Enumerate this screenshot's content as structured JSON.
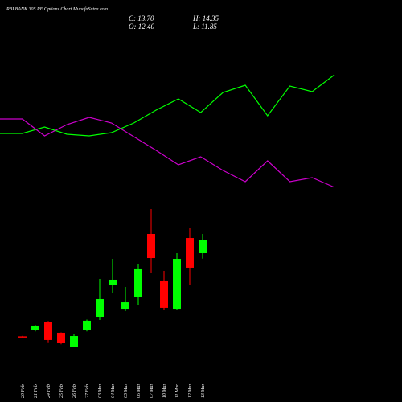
{
  "chart_data": [
    {
      "type": "candlestick",
      "title": "RBLBANK 305 PE Options Chart MunafaSutra.com",
      "header": [
        "C: 13.70",
        "H: 14.35",
        "O: 12.40",
        "L: 11.85"
      ],
      "categories": [
        "20 Feb",
        "21 Feb",
        "24 Feb",
        "25 Feb",
        "26 Feb",
        "27 Feb",
        "03 Mar",
        "04 Mar",
        "05 Mar",
        "06 Mar",
        "07 Mar",
        "10 Mar",
        "11 Mar",
        "12 Mar",
        "13 Mar"
      ],
      "open": [
        4.0,
        4.6,
        5.49,
        4.36,
        2.97,
        4.6,
        5.98,
        9.15,
        6.79,
        8.01,
        14.35,
        9.64,
        6.79,
        13.94,
        12.4
      ],
      "high": [
        4.05,
        5.15,
        5.55,
        4.4,
        4.2,
        5.7,
        9.8,
        11.83,
        8.99,
        11.34,
        16.87,
        10.61,
        12.4,
        15.0,
        14.35
      ],
      "low": [
        3.9,
        4.5,
        3.4,
        3.2,
        2.9,
        4.5,
        5.66,
        8.34,
        6.55,
        7.2,
        10.37,
        6.63,
        6.63,
        9.15,
        11.85
      ],
      "close": [
        3.95,
        5.09,
        3.63,
        3.38,
        4.03,
        5.58,
        7.77,
        9.72,
        7.44,
        10.86,
        11.91,
        6.88,
        11.83,
        10.94,
        13.7
      ],
      "up_color": "#00ff00",
      "down_color": "#ff0000",
      "ylim": [
        -2.63,
        37.99
      ]
    },
    {
      "type": "line",
      "x": [
        0,
        1,
        2,
        3,
        4,
        5,
        6,
        7,
        8,
        9,
        10,
        11,
        12,
        13,
        14,
        15
      ],
      "xlim": [
        0,
        15
      ],
      "ylim": [
        0,
        300
      ],
      "series": [
        {
          "color": "#00ff00",
          "values": [
            134,
            134,
            142,
            133,
            131,
            135,
            147,
            163,
            177,
            160,
            185,
            194,
            156,
            193,
            186,
            207
          ]
        },
        {
          "color": "#cc00cc",
          "values": [
            152,
            152,
            131,
            145,
            154,
            147,
            130,
            113,
            95,
            105,
            88,
            74,
            100,
            74,
            79,
            67
          ]
        }
      ]
    }
  ]
}
